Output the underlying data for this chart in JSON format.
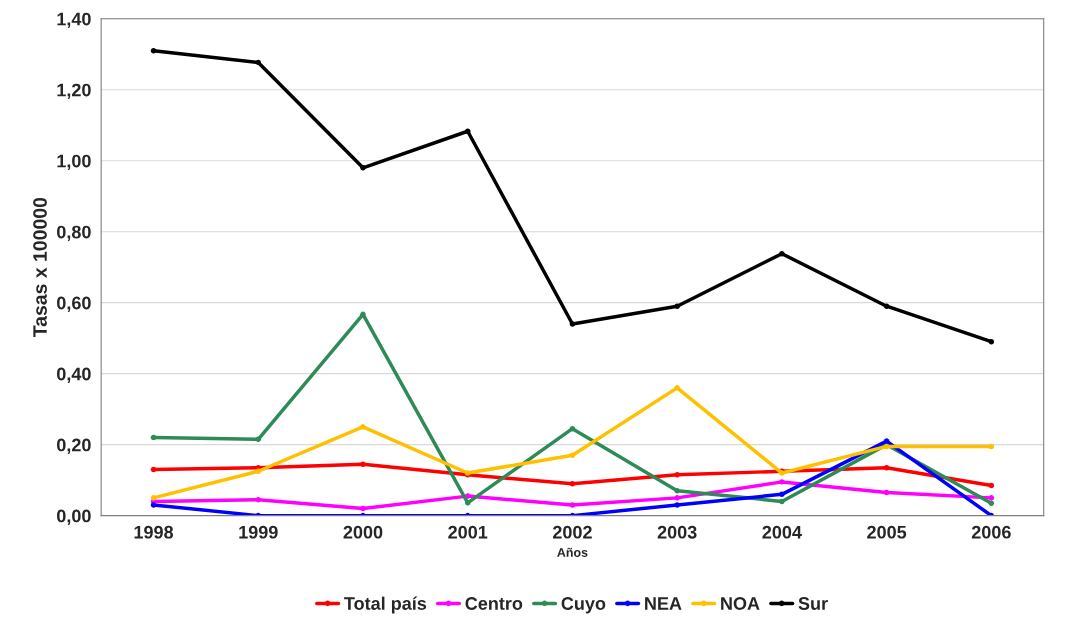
{
  "chart_data": {
    "type": "line",
    "xlabel": "Años",
    "ylabel": "Tasas x 100000",
    "categories": [
      "1998",
      "1999",
      "2000",
      "2001",
      "2002",
      "2003",
      "2004",
      "2005",
      "2006"
    ],
    "series": [
      {
        "name": "Total país",
        "color": "#ff0000",
        "values": [
          0.13,
          0.135,
          0.145,
          0.115,
          0.09,
          0.115,
          0.125,
          0.135,
          0.085
        ]
      },
      {
        "name": "Centro",
        "color": "#ff00ff",
        "values": [
          0.04,
          0.045,
          0.02,
          0.055,
          0.03,
          0.05,
          0.095,
          0.065,
          0.05
        ]
      },
      {
        "name": "Cuyo",
        "color": "#2e8b57",
        "values": [
          0.22,
          0.215,
          0.567,
          0.036,
          0.245,
          0.07,
          0.04,
          0.2,
          0.035
        ]
      },
      {
        "name": "NEA",
        "color": "#0000ff",
        "values": [
          0.03,
          0,
          0,
          0,
          0,
          0.03,
          0.06,
          0.21,
          0
        ]
      },
      {
        "name": "NOA",
        "color": "#ffc000",
        "values": [
          0.05,
          0.125,
          0.25,
          0.12,
          0.17,
          0.36,
          0.12,
          0.195,
          0.195
        ]
      },
      {
        "name": "Sur",
        "color": "#000000",
        "values": [
          1.31,
          1.277,
          0.98,
          1.083,
          0.54,
          0.59,
          0.738,
          0.59,
          0.49
        ]
      }
    ],
    "ylim": [
      0,
      1.4
    ],
    "yticks": [
      {
        "value": 0,
        "label": "0,00"
      },
      {
        "value": 0.2,
        "label": "0,20"
      },
      {
        "value": 0.4,
        "label": "0,40"
      },
      {
        "value": 0.6,
        "label": "0,60"
      },
      {
        "value": 0.8,
        "label": "0,80"
      },
      {
        "value": 1.0,
        "label": "1,00"
      },
      {
        "value": 1.2,
        "label": "1,20"
      },
      {
        "value": 1.4,
        "label": "1,40"
      }
    ],
    "grid": "y",
    "legend": "bottom",
    "marker": "circle",
    "line_style": "solid"
  }
}
